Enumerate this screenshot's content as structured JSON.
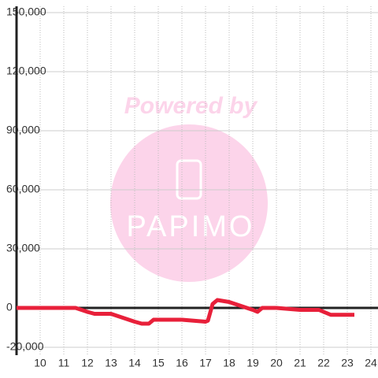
{
  "chart_data": {
    "type": "line",
    "watermark": {
      "text": "Powered by",
      "logo": "PAPIMO"
    },
    "x": [
      9,
      11.5,
      12,
      12.3,
      13,
      13.5,
      14,
      14.3,
      14.6,
      14.8,
      16,
      16.5,
      17,
      17.1,
      17.3,
      17.5,
      18,
      18.5,
      19,
      19.2,
      19.4,
      20,
      20.5,
      21,
      21.8,
      22,
      22.3,
      23.3
    ],
    "series": [
      {
        "color": "#e8203a",
        "values": [
          0,
          0,
          -2000,
          -3000,
          -3000,
          -5000,
          -7000,
          -8000,
          -8000,
          -6000,
          -6000,
          -6500,
          -7000,
          -6500,
          2000,
          4000,
          3000,
          1000,
          -1000,
          -2000,
          0,
          0,
          -500,
          -1000,
          -1000,
          -2000,
          -3500,
          -3500
        ]
      }
    ],
    "xlim": [
      9,
      24.3
    ],
    "xticks": [
      10,
      11,
      12,
      13,
      14,
      15,
      16,
      17,
      18,
      19,
      20,
      21,
      22,
      23,
      24
    ],
    "ylim": [
      -24000,
      150000
    ],
    "yticks": [
      {
        "value": -20000,
        "label": "-20,000"
      },
      0,
      {
        "value": 30000,
        "label": "30,000"
      },
      {
        "value": 60000,
        "label": "60,000"
      },
      {
        "value": 90000,
        "label": "90,000"
      },
      {
        "value": 120000,
        "label": "120,000"
      },
      {
        "value": 150000,
        "label": "150,000"
      }
    ],
    "grid": true
  }
}
